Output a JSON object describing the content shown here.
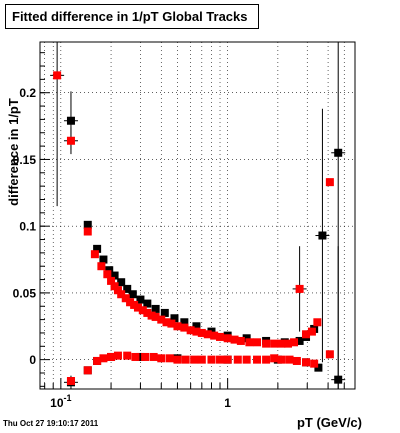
{
  "timestamp": "Thu Oct 27 19:10:17 2011",
  "chart_data": {
    "type": "scatter",
    "title": "Fitted difference in 1/pT  Global Tracks",
    "xlabel": "pT (GeV/c)",
    "ylabel": "difference in 1/pT",
    "xscale": "log",
    "xlim": [
      0.075,
      5.8
    ],
    "ylim": [
      -0.022,
      0.238
    ],
    "x_ticks": [
      {
        "value": 0.1,
        "label": "10^-1"
      },
      {
        "value": 1,
        "label": "1"
      }
    ],
    "y_ticks": [
      {
        "value": 0,
        "label": "0"
      },
      {
        "value": 0.05,
        "label": "0.05"
      },
      {
        "value": 0.1,
        "label": "0.1"
      },
      {
        "value": 0.15,
        "label": "0.15"
      },
      {
        "value": 0.2,
        "label": "0.2"
      }
    ],
    "grid": true,
    "legend": "none",
    "series": [
      {
        "color": "#000000",
        "marker": "square",
        "points": [
          {
            "x": 0.115,
            "y": 0.179,
            "yerr": 0.022
          },
          {
            "x": 0.145,
            "y": 0.101
          },
          {
            "x": 0.165,
            "y": 0.083
          },
          {
            "x": 0.18,
            "y": 0.075
          },
          {
            "x": 0.195,
            "y": 0.067
          },
          {
            "x": 0.21,
            "y": 0.063
          },
          {
            "x": 0.23,
            "y": 0.058
          },
          {
            "x": 0.25,
            "y": 0.053
          },
          {
            "x": 0.27,
            "y": 0.049
          },
          {
            "x": 0.3,
            "y": 0.045
          },
          {
            "x": 0.33,
            "y": 0.042
          },
          {
            "x": 0.37,
            "y": 0.038
          },
          {
            "x": 0.42,
            "y": 0.035
          },
          {
            "x": 0.48,
            "y": 0.031
          },
          {
            "x": 0.55,
            "y": 0.028
          },
          {
            "x": 0.65,
            "y": 0.025
          },
          {
            "x": 0.8,
            "y": 0.021
          },
          {
            "x": 1.0,
            "y": 0.018
          },
          {
            "x": 1.3,
            "y": 0.016
          },
          {
            "x": 1.7,
            "y": 0.014
          },
          {
            "x": 2.2,
            "y": 0.013
          },
          {
            "x": 2.7,
            "y": 0.014
          },
          {
            "x": 2.95,
            "y": 0.017
          },
          {
            "x": 3.3,
            "y": 0.023
          },
          {
            "x": 3.7,
            "y": 0.093,
            "yerr": 0.095
          },
          {
            "x": 4.6,
            "y": 0.155,
            "yerr": 0.25
          },
          {
            "x": 0.115,
            "y": -0.017,
            "yerr": 0.005
          },
          {
            "x": 0.145,
            "y": -0.008
          },
          {
            "x": 0.165,
            "y": -0.001
          },
          {
            "x": 0.2,
            "y": 0.002
          },
          {
            "x": 0.3,
            "y": 0.002
          },
          {
            "x": 0.5,
            "y": 0.001
          },
          {
            "x": 1.0,
            "y": 0.0
          },
          {
            "x": 2.0,
            "y": 0.0
          },
          {
            "x": 2.95,
            "y": -0.002
          },
          {
            "x": 3.5,
            "y": -0.006
          },
          {
            "x": 4.6,
            "y": -0.015,
            "yerr": 0.1
          }
        ]
      },
      {
        "color": "#ff0000",
        "marker": "square",
        "points": [
          {
            "x": 0.095,
            "y": 0.213,
            "yerr": 0.098
          },
          {
            "x": 0.115,
            "y": 0.164,
            "yerr": 0.01
          },
          {
            "x": 0.145,
            "y": 0.096
          },
          {
            "x": 0.16,
            "y": 0.079
          },
          {
            "x": 0.175,
            "y": 0.07
          },
          {
            "x": 0.19,
            "y": 0.064
          },
          {
            "x": 0.2,
            "y": 0.059
          },
          {
            "x": 0.21,
            "y": 0.055
          },
          {
            "x": 0.22,
            "y": 0.052
          },
          {
            "x": 0.23,
            "y": 0.049
          },
          {
            "x": 0.245,
            "y": 0.046
          },
          {
            "x": 0.26,
            "y": 0.043
          },
          {
            "x": 0.275,
            "y": 0.041
          },
          {
            "x": 0.29,
            "y": 0.039
          },
          {
            "x": 0.31,
            "y": 0.037
          },
          {
            "x": 0.33,
            "y": 0.035
          },
          {
            "x": 0.35,
            "y": 0.033
          },
          {
            "x": 0.37,
            "y": 0.032
          },
          {
            "x": 0.4,
            "y": 0.03
          },
          {
            "x": 0.43,
            "y": 0.028
          },
          {
            "x": 0.46,
            "y": 0.027
          },
          {
            "x": 0.5,
            "y": 0.025
          },
          {
            "x": 0.55,
            "y": 0.024
          },
          {
            "x": 0.6,
            "y": 0.022
          },
          {
            "x": 0.65,
            "y": 0.021
          },
          {
            "x": 0.7,
            "y": 0.02
          },
          {
            "x": 0.76,
            "y": 0.019
          },
          {
            "x": 0.83,
            "y": 0.018
          },
          {
            "x": 0.9,
            "y": 0.017
          },
          {
            "x": 1.0,
            "y": 0.016
          },
          {
            "x": 1.1,
            "y": 0.015
          },
          {
            "x": 1.2,
            "y": 0.014
          },
          {
            "x": 1.35,
            "y": 0.013
          },
          {
            "x": 1.5,
            "y": 0.013
          },
          {
            "x": 1.7,
            "y": 0.012
          },
          {
            "x": 1.9,
            "y": 0.012
          },
          {
            "x": 2.1,
            "y": 0.012
          },
          {
            "x": 2.3,
            "y": 0.012
          },
          {
            "x": 2.5,
            "y": 0.013
          },
          {
            "x": 2.7,
            "y": 0.053,
            "yerr": 0.032
          },
          {
            "x": 2.95,
            "y": 0.019
          },
          {
            "x": 3.2,
            "y": 0.021
          },
          {
            "x": 3.45,
            "y": 0.028
          },
          {
            "x": 4.1,
            "y": 0.133
          },
          {
            "x": 0.115,
            "y": -0.016
          },
          {
            "x": 0.145,
            "y": -0.008
          },
          {
            "x": 0.165,
            "y": -0.001
          },
          {
            "x": 0.18,
            "y": 0.001
          },
          {
            "x": 0.2,
            "y": 0.002
          },
          {
            "x": 0.22,
            "y": 0.003
          },
          {
            "x": 0.25,
            "y": 0.003
          },
          {
            "x": 0.28,
            "y": 0.002
          },
          {
            "x": 0.32,
            "y": 0.002
          },
          {
            "x": 0.36,
            "y": 0.002
          },
          {
            "x": 0.4,
            "y": 0.001
          },
          {
            "x": 0.45,
            "y": 0.001
          },
          {
            "x": 0.5,
            "y": 0.0
          },
          {
            "x": 0.56,
            "y": 0.0
          },
          {
            "x": 0.63,
            "y": 0.0
          },
          {
            "x": 0.7,
            "y": 0.0
          },
          {
            "x": 0.8,
            "y": 0.0
          },
          {
            "x": 0.9,
            "y": 0.0
          },
          {
            "x": 1.0,
            "y": 0.0
          },
          {
            "x": 1.15,
            "y": 0.0
          },
          {
            "x": 1.3,
            "y": 0.0
          },
          {
            "x": 1.5,
            "y": 0.0
          },
          {
            "x": 1.7,
            "y": 0.0
          },
          {
            "x": 1.9,
            "y": 0.001
          },
          {
            "x": 2.1,
            "y": 0.0
          },
          {
            "x": 2.35,
            "y": 0.0
          },
          {
            "x": 2.6,
            "y": -0.001
          },
          {
            "x": 2.95,
            "y": -0.002
          },
          {
            "x": 3.3,
            "y": -0.003
          },
          {
            "x": 4.1,
            "y": 0.004
          }
        ]
      }
    ]
  }
}
